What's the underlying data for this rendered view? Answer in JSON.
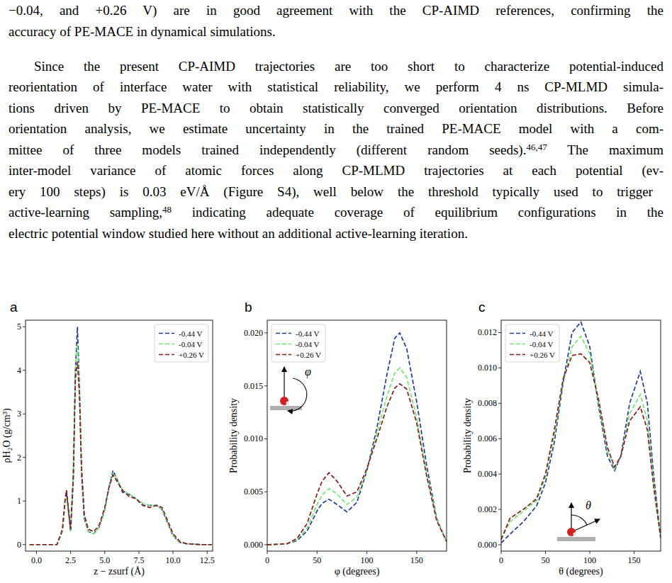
{
  "paragraphs": [
    [
      [
        {
          "text": "−0.04, and +0.26 V) are in good agreement with the CP-AIMD references, confirming the"
        }
      ],
      [
        {
          "text": "accuracy of PE-MACE in dynamical simulations."
        }
      ]
    ],
    [
      [
        {
          "text": "Since the present CP-AIMD trajectories are too short to characterize potential-induced"
        }
      ],
      [
        {
          "text": "reorientation of interface water with statistical reliability, we perform 4 ns CP-MLMD simula-"
        }
      ],
      [
        {
          "text": "tions driven by PE-MACE to obtain statistically converged orientation distributions. Before"
        }
      ],
      [
        {
          "text": "orientation analysis, we estimate uncertainty in the trained PE-MACE model with a com-"
        }
      ],
      [
        {
          "text": "mittee of three models trained independently (different random seeds)."
        },
        {
          "sup": "46,47"
        },
        {
          "text": " The maximum"
        }
      ],
      [
        {
          "text": "inter-model variance of atomic forces along CP-MLMD trajectories at each potential (ev-"
        }
      ],
      [
        {
          "text": "ery 100 steps) is  0.03 eV/Å (Figure S4), well below the threshold typically used to trigger"
        }
      ],
      [
        {
          "text": "active-learning sampling,"
        },
        {
          "sup": "48"
        },
        {
          "text": " indicating adequate coverage of equilibrium configurations in the"
        }
      ],
      [
        {
          "text": "electric potential window studied here without an additional active-learning iteration."
        }
      ]
    ]
  ],
  "chart_data": [
    {
      "type": "line",
      "panel": "a",
      "x_label": "z − zsurf (Å)",
      "y_label": "ρH₂O (g/cm³)",
      "xlim": [
        -0.8,
        12.9
      ],
      "xticks": [
        {
          "value": 0,
          "label": "0.0"
        },
        2.5,
        {
          "value": 5,
          "label": "5.0"
        },
        7.5,
        {
          "value": 10,
          "label": "10.0"
        },
        12.5
      ],
      "ylim": [
        -0.15,
        5.15
      ],
      "yticks": [
        0,
        1,
        2,
        3,
        4,
        5
      ],
      "legend": "upper right",
      "x": [
        -0.5,
        1.5,
        1.9,
        2.1,
        2.2,
        2.3,
        2.5,
        2.7,
        2.85,
        3.0,
        3.15,
        3.3,
        3.5,
        3.8,
        4.2,
        4.6,
        5.0,
        5.3,
        5.6,
        5.9,
        6.3,
        6.8,
        7.3,
        7.8,
        8.3,
        8.8,
        9.2,
        9.6,
        10.0,
        10.5,
        11.0,
        12.0,
        12.85
      ],
      "series": [
        {
          "name": "-0.44 V",
          "color": "#1f3a9e",
          "line_style": "dashed",
          "values": [
            0,
            0,
            0.3,
            1.0,
            1.2,
            0.9,
            0.3,
            1.5,
            4.0,
            5.0,
            3.6,
            1.6,
            0.6,
            0.3,
            0.25,
            0.4,
            0.8,
            1.3,
            1.7,
            1.5,
            1.2,
            1.15,
            1.05,
            0.9,
            0.9,
            0.9,
            0.8,
            0.5,
            0.2,
            0.05,
            0.02,
            0,
            0
          ]
        },
        {
          "name": "-0.04 V",
          "color": "#6fe86f",
          "line_style": "dashed",
          "values": [
            0,
            0,
            0.3,
            0.95,
            1.1,
            0.85,
            0.3,
            1.6,
            4.0,
            4.6,
            3.5,
            1.7,
            0.65,
            0.3,
            0.25,
            0.4,
            0.8,
            1.3,
            1.65,
            1.5,
            1.25,
            1.15,
            1.05,
            0.95,
            0.9,
            0.9,
            0.8,
            0.5,
            0.2,
            0.05,
            0.02,
            0,
            0
          ]
        },
        {
          "name": "+0.26 V",
          "color": "#8b1a1a",
          "line_style": "dashed",
          "values": [
            0,
            0,
            0.35,
            1.05,
            1.25,
            0.95,
            0.35,
            1.6,
            3.8,
            4.2,
            3.4,
            1.8,
            0.7,
            0.35,
            0.3,
            0.45,
            0.85,
            1.3,
            1.6,
            1.45,
            1.25,
            1.1,
            1.05,
            0.9,
            0.85,
            0.9,
            0.85,
            0.55,
            0.25,
            0.07,
            0.02,
            0,
            0
          ]
        }
      ]
    },
    {
      "type": "line",
      "panel": "b",
      "x_label": "φ (degrees)",
      "y_label": "Probability density",
      "inset_label": "φ",
      "xlim": [
        0,
        180
      ],
      "xticks": [
        0,
        50,
        100,
        150
      ],
      "ylim": [
        -0.0006,
        0.0212
      ],
      "yticks": [
        {
          "value": 0,
          "label": "0.000"
        },
        0.005,
        {
          "value": 0.01,
          "label": "0.010"
        },
        0.015,
        {
          "value": 0.02,
          "label": "0.020"
        }
      ],
      "legend": "upper left",
      "x": [
        0,
        20,
        30,
        40,
        50,
        55,
        62,
        70,
        80,
        90,
        100,
        110,
        120,
        128,
        133,
        140,
        150,
        160,
        170,
        180
      ],
      "series": [
        {
          "name": "-0.44 V",
          "color": "#1f3a9e",
          "line_style": "dashed",
          "values": [
            0,
            0.0001,
            0.0004,
            0.0013,
            0.0032,
            0.0039,
            0.0043,
            0.0038,
            0.0031,
            0.004,
            0.007,
            0.011,
            0.016,
            0.0195,
            0.02,
            0.0185,
            0.0135,
            0.0075,
            0.0025,
            0.0003
          ]
        },
        {
          "name": "-0.04 V",
          "color": "#6fe86f",
          "line_style": "dashed",
          "values": [
            0,
            0.0001,
            0.0005,
            0.0016,
            0.0038,
            0.0047,
            0.0053,
            0.0048,
            0.0038,
            0.0045,
            0.007,
            0.0105,
            0.014,
            0.0162,
            0.0167,
            0.0158,
            0.012,
            0.0068,
            0.0024,
            0.0003
          ]
        },
        {
          "name": "+0.26 V",
          "color": "#8b1a1a",
          "line_style": "dashed",
          "values": [
            0,
            0.0001,
            0.0006,
            0.002,
            0.0048,
            0.006,
            0.0068,
            0.006,
            0.0046,
            0.005,
            0.0072,
            0.01,
            0.013,
            0.0148,
            0.0152,
            0.0147,
            0.0115,
            0.0065,
            0.0023,
            0.0003
          ]
        }
      ]
    },
    {
      "type": "line",
      "panel": "c",
      "x_label": "θ (degrees)",
      "y_label": "Probability density",
      "inset_label": "θ",
      "xlim": [
        0,
        180
      ],
      "xticks": [
        0,
        50,
        100,
        150
      ],
      "ylim": [
        -0.00036,
        0.0127
      ],
      "yticks": [
        {
          "value": 0,
          "label": "0.000"
        },
        0.002,
        0.004,
        0.006,
        0.008,
        {
          "value": 0.01,
          "label": "0.010"
        },
        0.012
      ],
      "legend": "upper left",
      "x": [
        0,
        10,
        25,
        40,
        50,
        60,
        70,
        80,
        90,
        100,
        110,
        120,
        128,
        135,
        145,
        157,
        165,
        172,
        180
      ],
      "series": [
        {
          "name": "-0.44 V",
          "color": "#1f3a9e",
          "line_style": "dashed",
          "values": [
            0.0001,
            0.0006,
            0.0013,
            0.0022,
            0.0035,
            0.0058,
            0.0092,
            0.012,
            0.0126,
            0.0112,
            0.0078,
            0.005,
            0.0042,
            0.005,
            0.008,
            0.0098,
            0.008,
            0.004,
            0.0004
          ]
        },
        {
          "name": "-0.04 V",
          "color": "#6fe86f",
          "line_style": "dashed",
          "values": [
            0.0003,
            0.0013,
            0.0019,
            0.0025,
            0.0038,
            0.0062,
            0.0092,
            0.0112,
            0.0118,
            0.0108,
            0.008,
            0.0053,
            0.0043,
            0.005,
            0.0074,
            0.0085,
            0.007,
            0.0036,
            0.0004
          ]
        },
        {
          "name": "+0.26 V",
          "color": "#8b1a1a",
          "line_style": "dashed",
          "values": [
            0.0003,
            0.0015,
            0.002,
            0.0026,
            0.004,
            0.0065,
            0.0094,
            0.0107,
            0.0108,
            0.0103,
            0.0082,
            0.0055,
            0.0044,
            0.005,
            0.007,
            0.0078,
            0.0065,
            0.0033,
            0.0004
          ]
        }
      ]
    }
  ]
}
